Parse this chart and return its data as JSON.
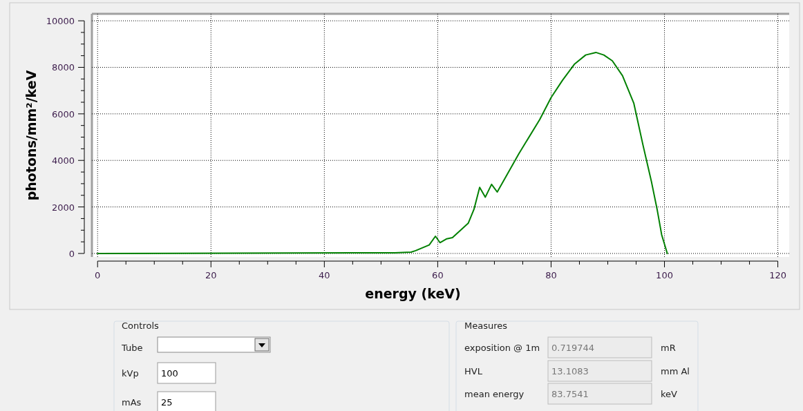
{
  "chart_data": {
    "type": "line",
    "xlabel": "energy (keV)",
    "ylabel": "photons/mm²/keV",
    "xlim": [
      -1,
      122
    ],
    "ylim": [
      -150,
      10300
    ],
    "xticks": [
      0,
      {
        "value": 5,
        "label": null
      },
      {
        "value": 10,
        "label": null
      },
      {
        "value": 15,
        "label": null
      },
      20,
      {
        "value": 25,
        "label": null
      },
      {
        "value": 30,
        "label": null
      },
      {
        "value": 35,
        "label": null
      },
      40,
      {
        "value": 45,
        "label": null
      },
      {
        "value": 50,
        "label": null
      },
      {
        "value": 55,
        "label": null
      },
      60,
      {
        "value": 65,
        "label": null
      },
      {
        "value": 70,
        "label": null
      },
      {
        "value": 75,
        "label": null
      },
      80,
      {
        "value": 85,
        "label": null
      },
      {
        "value": 90,
        "label": null
      },
      {
        "value": 95,
        "label": null
      },
      100,
      {
        "value": 105,
        "label": null
      },
      {
        "value": 110,
        "label": null
      },
      {
        "value": 115,
        "label": null
      },
      120
    ],
    "yticks": [
      0,
      {
        "value": 500,
        "label": null
      },
      {
        "value": 1000,
        "label": null
      },
      {
        "value": 1500,
        "label": null
      },
      2000,
      {
        "value": 2500,
        "label": null
      },
      {
        "value": 3000,
        "label": null
      },
      {
        "value": 3500,
        "label": null
      },
      4000,
      {
        "value": 4500,
        "label": null
      },
      {
        "value": 5000,
        "label": null
      },
      {
        "value": 5500,
        "label": null
      },
      6000,
      {
        "value": 6500,
        "label": null
      },
      {
        "value": 7000,
        "label": null
      },
      {
        "value": 7500,
        "label": null
      },
      8000,
      {
        "value": 8500,
        "label": null
      },
      {
        "value": 9000,
        "label": null
      },
      {
        "value": 9500,
        "label": null
      },
      10000
    ],
    "grid": true,
    "marker": "none",
    "line_style": "solid",
    "series": [
      {
        "color": "#008000",
        "x": [
          0,
          52.4,
          55.3,
          56.1,
          58.5,
          59.6,
          60.4,
          61.6,
          62.6,
          65.4,
          66.4,
          67.4,
          68.4,
          69.5,
          70.5,
          74.3,
          78.0,
          80.0,
          82.0,
          84.1,
          86.1,
          87.9,
          89.3,
          90.8,
          92.6,
          94.6,
          96.2,
          97.7,
          98.7,
          99.5,
          100.5
        ],
        "values": [
          0,
          30,
          60,
          120,
          365,
          740,
          465,
          630,
          680,
          1305,
          1900,
          2840,
          2420,
          2970,
          2640,
          4280,
          5760,
          6700,
          7440,
          8130,
          8530,
          8640,
          8530,
          8280,
          7640,
          6450,
          4670,
          3090,
          1900,
          810,
          0
        ]
      }
    ],
    "annotations": [
      "Controls",
      "Tube",
      "kVp",
      "100",
      "mAs",
      "25",
      "Measures",
      "exposition @ 1m",
      "0.719744",
      "mR",
      "HVL",
      "13.1083",
      "mm Al",
      "mean energy",
      "83.7541",
      "keV"
    ]
  }
}
